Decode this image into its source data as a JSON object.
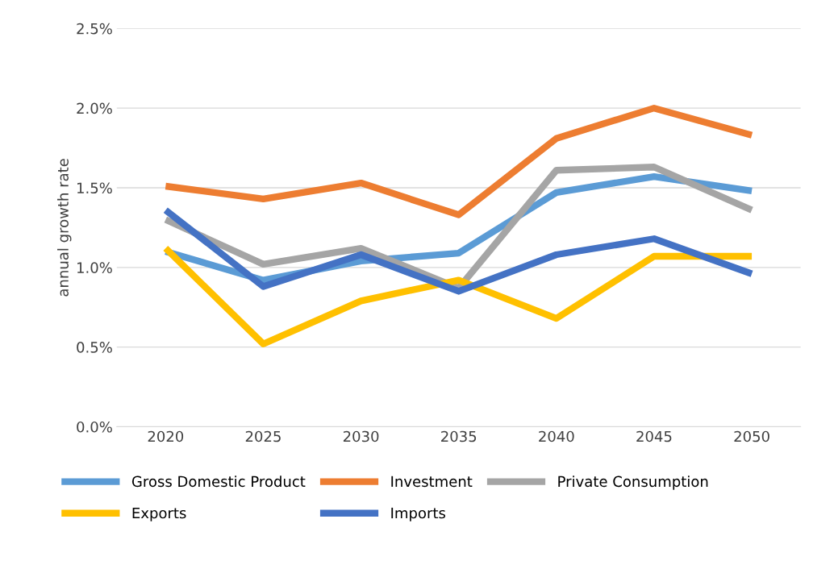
{
  "chart_data": {
    "type": "line",
    "ylabel": "annual growth rate",
    "categories": [
      "2020",
      "2025",
      "2030",
      "2035",
      "2040",
      "2045",
      "2050"
    ],
    "series": [
      {
        "name": "Gross Domestic Product",
        "color": "#5b9bd5",
        "values": [
          1.1,
          0.92,
          1.04,
          1.09,
          1.47,
          1.57,
          1.48
        ]
      },
      {
        "name": "Investment",
        "color": "#ed7d31",
        "values": [
          1.51,
          1.43,
          1.53,
          1.33,
          1.81,
          2.0,
          1.83
        ]
      },
      {
        "name": "Private Consumption",
        "color": "#a5a5a5",
        "values": [
          1.3,
          1.02,
          1.12,
          0.87,
          1.61,
          1.63,
          1.36
        ]
      },
      {
        "name": "Exports",
        "color": "#ffc000",
        "values": [
          1.12,
          0.52,
          0.79,
          0.92,
          0.68,
          1.07,
          1.07
        ]
      },
      {
        "name": "Imports",
        "color": "#4472c4",
        "values": [
          1.36,
          0.88,
          1.08,
          0.85,
          1.08,
          1.18,
          0.96
        ]
      }
    ],
    "ylim": [
      0,
      2.5
    ],
    "yticks": [
      {
        "value": 0,
        "label": "0.0%"
      },
      {
        "value": 0.5,
        "label": "0.5%"
      },
      {
        "value": 1,
        "label": "1.0%"
      },
      {
        "value": 1.5,
        "label": "1.5%"
      },
      {
        "value": 2,
        "label": "2.0%"
      },
      {
        "value": 2.5,
        "label": "2.5%"
      }
    ],
    "grid": "y",
    "legend": "bottom",
    "marker": "none",
    "line_style": "solid"
  }
}
